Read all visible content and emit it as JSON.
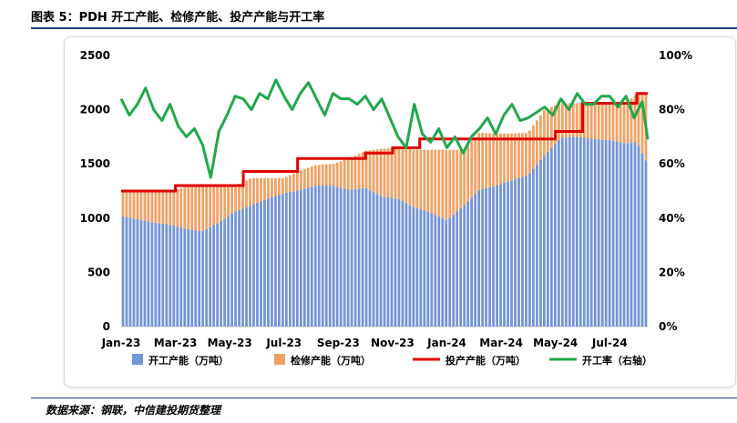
{
  "header": {
    "title": "图表 5：PDH 开工产能、检修产能、投产产能与开工率"
  },
  "footer": {
    "source": "数据来源：钢联，中信建投期货整理"
  },
  "colors": {
    "operating": "#7394d6",
    "maintenance": "#f0a266",
    "installed": "#e00000",
    "rate": "#22a84a"
  },
  "chart_data": {
    "type": "bar",
    "title": "",
    "x_tick_labels": [
      "Jan-23",
      "Mar-23",
      "May-23",
      "Jul-23",
      "Sep-23",
      "Nov-23",
      "Jan-24",
      "Mar-24",
      "May-24",
      "Jul-24"
    ],
    "y_left": {
      "min": 0,
      "max": 2500,
      "step": 500,
      "tick_labels": [
        "0",
        "500",
        "1000",
        "1500",
        "2000",
        "2500"
      ]
    },
    "y_right": {
      "min": 0,
      "max": 1,
      "step": 0.2,
      "tick_labels": [
        "0%",
        "20%",
        "40%",
        "60%",
        "80%",
        "100%"
      ]
    },
    "legend": {
      "placement": "bottom",
      "entries": [
        "开工产能（万吨）",
        "检修产能（万吨）",
        "投产产能（万吨）",
        "开工率（右轴）"
      ]
    },
    "x_months": [
      0,
      0.6,
      1.2,
      1.8,
      2.4,
      3,
      3.6,
      4.2,
      4.8,
      5.4,
      6,
      6.6,
      7.2,
      7.8,
      8.4,
      9,
      9.6,
      10.2,
      10.8,
      11.4,
      12,
      12.6,
      13.2,
      13.8,
      14.4,
      15,
      15.6,
      16.2,
      16.8,
      17.4,
      18,
      18.6,
      19,
      19.4
    ],
    "series": [
      {
        "name": "开工产能（万吨）",
        "kind": "bar-stack",
        "values": [
          1020,
          990,
          960,
          940,
          900,
          880,
          960,
          1060,
          1120,
          1180,
          1230,
          1260,
          1300,
          1300,
          1260,
          1280,
          1200,
          1180,
          1100,
          1050,
          980,
          1110,
          1260,
          1300,
          1350,
          1400,
          1580,
          1740,
          1750,
          1730,
          1720,
          1690,
          1700,
          1500
        ]
      },
      {
        "name": "检修产能（万吨）",
        "kind": "bar-stack",
        "values": [
          230,
          260,
          290,
          310,
          390,
          410,
          340,
          240,
          250,
          190,
          140,
          180,
          190,
          200,
          290,
          340,
          440,
          470,
          530,
          580,
          650,
          520,
          530,
          480,
          430,
          390,
          420,
          320,
          310,
          330,
          340,
          370,
          450,
          650
        ]
      },
      {
        "name": "投产产能（万吨）",
        "kind": "line",
        "step": true,
        "x": [
          0,
          2,
          2,
          4.5,
          4.5,
          6.5,
          6.5,
          9,
          9,
          10,
          10,
          11,
          11,
          16,
          16,
          17,
          17,
          19,
          19,
          19.4
        ],
        "values": [
          1250,
          1250,
          1300,
          1300,
          1430,
          1430,
          1550,
          1550,
          1600,
          1600,
          1650,
          1650,
          1730,
          1730,
          1800,
          1800,
          2060,
          2060,
          2150,
          2150
        ]
      },
      {
        "name": "开工率（右轴）",
        "kind": "line",
        "axis": "right",
        "x": [
          0,
          0.3,
          0.6,
          0.9,
          1.2,
          1.5,
          1.8,
          2.1,
          2.4,
          2.7,
          3,
          3.3,
          3.6,
          3.9,
          4.2,
          4.5,
          4.8,
          5.1,
          5.4,
          5.7,
          6,
          6.3,
          6.6,
          6.9,
          7.2,
          7.5,
          7.8,
          8.1,
          8.4,
          8.7,
          9,
          9.3,
          9.6,
          9.9,
          10.2,
          10.5,
          10.8,
          11.1,
          11.4,
          11.7,
          12,
          12.3,
          12.6,
          12.9,
          13.2,
          13.5,
          13.8,
          14.1,
          14.4,
          14.7,
          15,
          15.3,
          15.6,
          15.9,
          16.2,
          16.5,
          16.8,
          17.1,
          17.4,
          17.7,
          18,
          18.3,
          18.6,
          18.9,
          19.2,
          19.4
        ],
        "values": [
          0.84,
          0.78,
          0.82,
          0.88,
          0.8,
          0.76,
          0.82,
          0.74,
          0.7,
          0.73,
          0.67,
          0.55,
          0.72,
          0.78,
          0.85,
          0.84,
          0.8,
          0.86,
          0.84,
          0.91,
          0.85,
          0.8,
          0.86,
          0.9,
          0.84,
          0.78,
          0.86,
          0.84,
          0.84,
          0.82,
          0.85,
          0.8,
          0.84,
          0.77,
          0.7,
          0.66,
          0.82,
          0.71,
          0.68,
          0.73,
          0.66,
          0.7,
          0.64,
          0.7,
          0.73,
          0.77,
          0.71,
          0.78,
          0.82,
          0.76,
          0.77,
          0.79,
          0.81,
          0.78,
          0.84,
          0.8,
          0.86,
          0.82,
          0.82,
          0.85,
          0.85,
          0.81,
          0.85,
          0.77,
          0.83,
          0.69
        ]
      }
    ]
  }
}
